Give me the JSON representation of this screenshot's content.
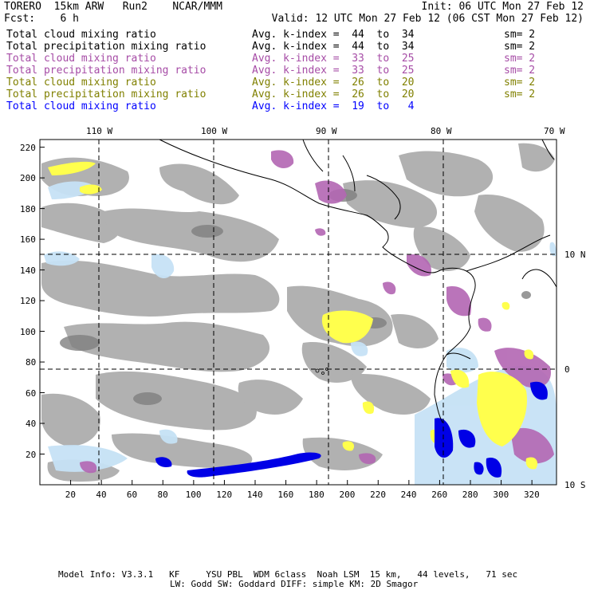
{
  "header": {
    "model": "TORERO  15km ARW   Run2    NCAR/MMM",
    "init": "Init: 06 UTC Mon 27 Feb 12",
    "fcst": "Fcst:    6 h",
    "valid": "Valid: 12 UTC Mon 27 Feb 12 (06 CST Mon 27 Feb 12)"
  },
  "legend": [
    {
      "field": "Total cloud mixing ratio",
      "kindex": "Avg. k-index =  44  to  34",
      "sm": "sm= 2",
      "color": "#000000"
    },
    {
      "field": "Total precipitation mixing ratio",
      "kindex": "Avg. k-index =  44  to  34",
      "sm": "sm= 2",
      "color": "#000000"
    },
    {
      "field": "Total cloud mixing ratio",
      "kindex": "Avg. k-index =  33  to  25",
      "sm": "sm= 2",
      "color": "#a64ca6"
    },
    {
      "field": "Total precipitation mixing ratio",
      "kindex": "Avg. k-index =  33  to  25",
      "sm": "sm= 2",
      "color": "#a64ca6"
    },
    {
      "field": "Total cloud mixing ratio",
      "kindex": "Avg. k-index =  26  to  20",
      "sm": "sm= 2",
      "color": "#808000"
    },
    {
      "field": "Total precipitation mixing ratio",
      "kindex": "Avg. k-index =  26  to  20",
      "sm": "sm= 2",
      "color": "#808000"
    },
    {
      "field": "Total cloud mixing ratio",
      "kindex": "Avg. k-index =  19  to   4",
      "sm": "",
      "color": "#0000ff"
    }
  ],
  "longitudes": [
    "110 W",
    "100 W",
    "90 W",
    "80 W",
    "70 W"
  ],
  "latitudes": [
    "10 N",
    "0",
    "10 S"
  ],
  "x_ticks": [
    "20",
    "40",
    "60",
    "80",
    "100",
    "120",
    "140",
    "160",
    "180",
    "200",
    "220",
    "240",
    "260",
    "280",
    "300",
    "320"
  ],
  "y_ticks": [
    "220",
    "200",
    "180",
    "160",
    "140",
    "120",
    "100",
    "80",
    "60",
    "40",
    "20"
  ],
  "footer": {
    "line1": "Model Info: V3.3.1   KF     YSU PBL  WDM 6class  Noah LSM  15 km,   44 levels,   71 sec",
    "line2": "LW: Godd SW: Goddard DIFF: simple KM: 2D Smagor"
  },
  "colors": {
    "cloud_gray": "#a6a6a6",
    "dark_gray": "#808080",
    "light_blue": "#c6e2f5",
    "purple": "#a64ca6",
    "yellow": "#ffff4d",
    "blue": "#0000ff"
  }
}
